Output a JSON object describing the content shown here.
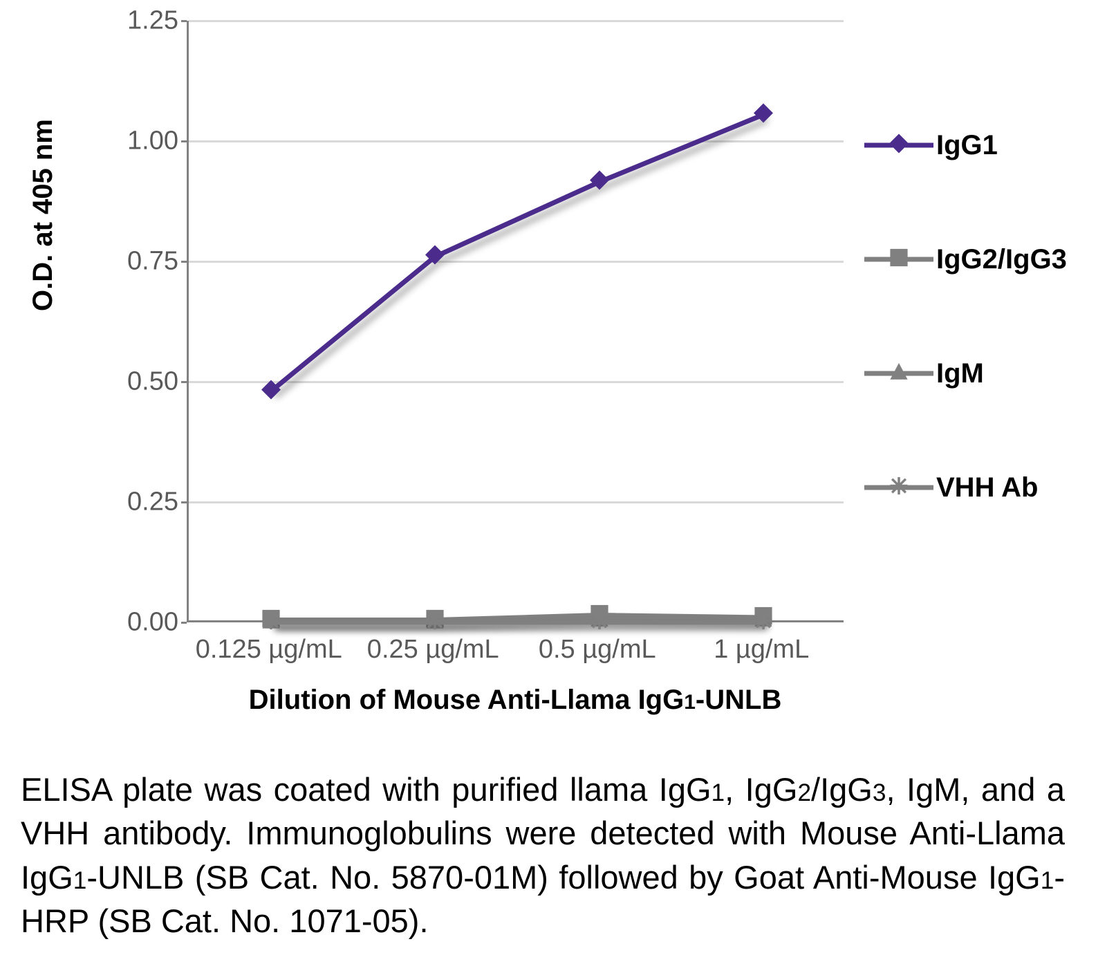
{
  "chart": {
    "type": "line",
    "ylabel": "O.D. at 405 nm",
    "xlabel": "Dilution of Mouse Anti-Llama IgG",
    "xlabel_sub": "1",
    "xlabel_suffix": "-UNLB",
    "ylim": [
      0,
      1.25
    ],
    "yticks": [
      0.0,
      0.25,
      0.5,
      0.75,
      1.0,
      1.25
    ],
    "ytick_labels": [
      "0.00",
      "0.25",
      "0.50",
      "0.75",
      "1.00",
      "1.25"
    ],
    "x_categories": [
      "0.125 µg/mL",
      "0.25 µg/mL",
      "0.5 µg/mL",
      "1 µg/mL"
    ],
    "background_color": "#ffffff",
    "grid_color": "#d9d9d9",
    "axis_color": "#828282",
    "tick_label_color": "#595959",
    "label_fontsize": 40,
    "tick_fontsize": 38,
    "line_width": 7,
    "marker_size": 28,
    "series": [
      {
        "name": "IgG1",
        "label": "IgG1",
        "color": "#4b2c8c",
        "marker": "diamond",
        "values": [
          0.48,
          0.76,
          0.915,
          1.055
        ]
      },
      {
        "name": "IgG2/IgG3",
        "label": "IgG2/IgG3",
        "color": "#808080",
        "marker": "square",
        "values": [
          0.005,
          0.005,
          0.015,
          0.01
        ]
      },
      {
        "name": "IgM",
        "label": "IgM",
        "color": "#808080",
        "marker": "triangle",
        "values": [
          0.0,
          0.0,
          0.005,
          0.005
        ]
      },
      {
        "name": "VHH Ab",
        "label": "VHH Ab",
        "color": "#808080",
        "marker": "asterisk",
        "values": [
          0.0,
          0.0,
          0.0,
          0.0
        ]
      }
    ]
  },
  "caption": {
    "parts": [
      {
        "t": "ELISA plate was coated with purified llama IgG"
      },
      {
        "t": "1",
        "sub": true
      },
      {
        "t": ", IgG"
      },
      {
        "t": "2",
        "sub": true
      },
      {
        "t": "/IgG"
      },
      {
        "t": "3",
        "sub": true
      },
      {
        "t": ", IgM, and a VHH antibody.  Immunoglobulins were detected with Mouse Anti-Llama IgG"
      },
      {
        "t": "1",
        "sub": true
      },
      {
        "t": "-UNLB (SB Cat. No. 5870-01M) followed by Goat Anti-Mouse IgG"
      },
      {
        "t": "1",
        "sub": true
      },
      {
        "t": "-HRP (SB Cat. No. 1071-05)."
      }
    ]
  }
}
